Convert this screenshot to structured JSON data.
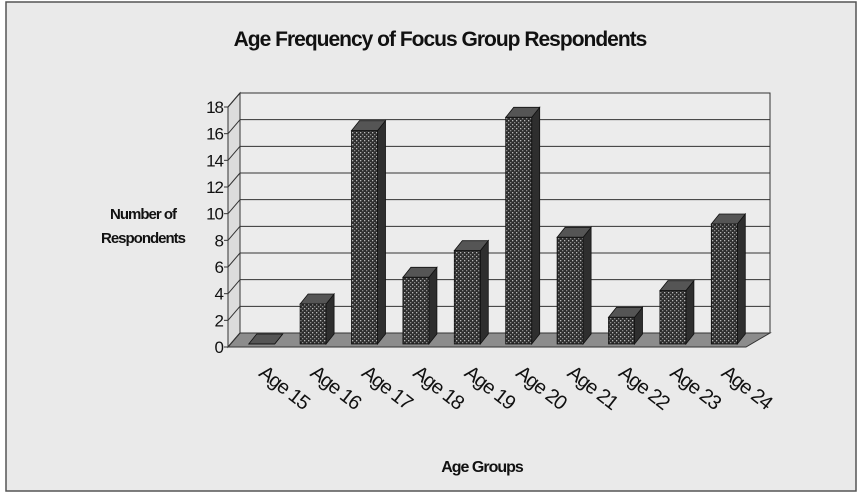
{
  "chart_data": {
    "type": "bar3d",
    "title": "Age Frequency of Focus Group Respondents",
    "x_label": "Age Groups",
    "y_label": "Number of Respondents",
    "categories": [
      "Age 15",
      "Age 16",
      "Age 17",
      "Age 18",
      "Age 19",
      "Age 20",
      "Age 21",
      "Age 22",
      "Age 23",
      "Age 24"
    ],
    "values": [
      0,
      3,
      16,
      5,
      7,
      17,
      8,
      2,
      4,
      9
    ],
    "color": "#2e2e2e",
    "ylim": [
      0,
      18
    ],
    "yticks": [
      0,
      2,
      4,
      6,
      8,
      10,
      12,
      14,
      16,
      18
    ],
    "grid": true
  }
}
